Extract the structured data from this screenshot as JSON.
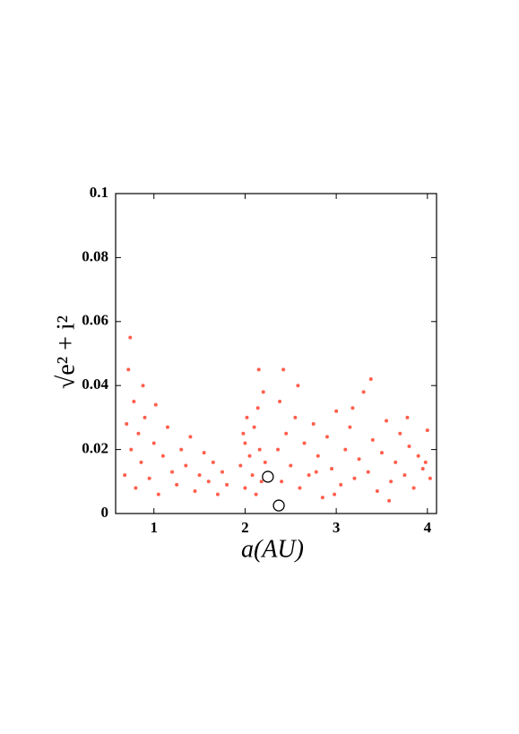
{
  "chart_data": {
    "type": "scatter",
    "x_label": "a(AU)",
    "y_label": "√e² + i²",
    "xlim": [
      0.58,
      4.1
    ],
    "ylim": [
      0,
      0.1
    ],
    "xticks": [
      1,
      2,
      3,
      4
    ],
    "yticks": [
      0,
      0.02,
      0.04,
      0.06,
      0.08,
      0.1
    ],
    "series": [
      {
        "color": "#ff2a10",
        "marker": "dot",
        "x": [
          0.68,
          0.7,
          0.72,
          0.75,
          0.78,
          0.8,
          0.83,
          0.86,
          0.9,
          0.95,
          1.0,
          1.05,
          1.1,
          1.15,
          1.2,
          1.25,
          1.3,
          1.35,
          1.4,
          1.45,
          1.5,
          1.55,
          1.6,
          1.65,
          1.7,
          1.75,
          1.8,
          0.74,
          0.88,
          1.02,
          1.95,
          1.98,
          2.0,
          2.02,
          2.05,
          2.08,
          2.1,
          2.12,
          2.14,
          2.16,
          2.18,
          2.2,
          2.22,
          2.0,
          2.15,
          2.36,
          2.38,
          2.4,
          2.45,
          2.5,
          2.55,
          2.6,
          2.65,
          2.7,
          2.75,
          2.8,
          2.85,
          2.9,
          2.95,
          3.0,
          3.05,
          3.1,
          3.15,
          3.2,
          3.25,
          3.3,
          3.35,
          3.4,
          3.45,
          3.5,
          3.55,
          3.6,
          3.65,
          3.7,
          3.75,
          3.8,
          3.85,
          3.9,
          3.95,
          4.0,
          4.03,
          2.42,
          2.58,
          2.78,
          2.98,
          3.18,
          3.38,
          3.58,
          3.78,
          3.98
        ],
        "values": [
          0.012,
          0.028,
          0.045,
          0.02,
          0.035,
          0.008,
          0.025,
          0.016,
          0.03,
          0.011,
          0.022,
          0.006,
          0.018,
          0.027,
          0.013,
          0.009,
          0.02,
          0.015,
          0.024,
          0.007,
          0.012,
          0.019,
          0.01,
          0.016,
          0.006,
          0.013,
          0.009,
          0.055,
          0.04,
          0.034,
          0.015,
          0.025,
          0.008,
          0.03,
          0.018,
          0.012,
          0.027,
          0.006,
          0.033,
          0.02,
          0.01,
          0.038,
          0.016,
          0.022,
          0.045,
          0.02,
          0.035,
          0.01,
          0.025,
          0.015,
          0.03,
          0.008,
          0.022,
          0.012,
          0.028,
          0.018,
          0.005,
          0.024,
          0.014,
          0.032,
          0.009,
          0.02,
          0.027,
          0.011,
          0.017,
          0.038,
          0.013,
          0.023,
          0.007,
          0.019,
          0.029,
          0.01,
          0.016,
          0.025,
          0.012,
          0.021,
          0.008,
          0.018,
          0.014,
          0.026,
          0.011,
          0.045,
          0.04,
          0.013,
          0.006,
          0.033,
          0.042,
          0.004,
          0.03,
          0.016
        ]
      },
      {
        "color": "#000000",
        "marker": "ring",
        "x": [
          2.25,
          2.37
        ],
        "values": [
          0.0115,
          0.0025
        ]
      }
    ]
  }
}
